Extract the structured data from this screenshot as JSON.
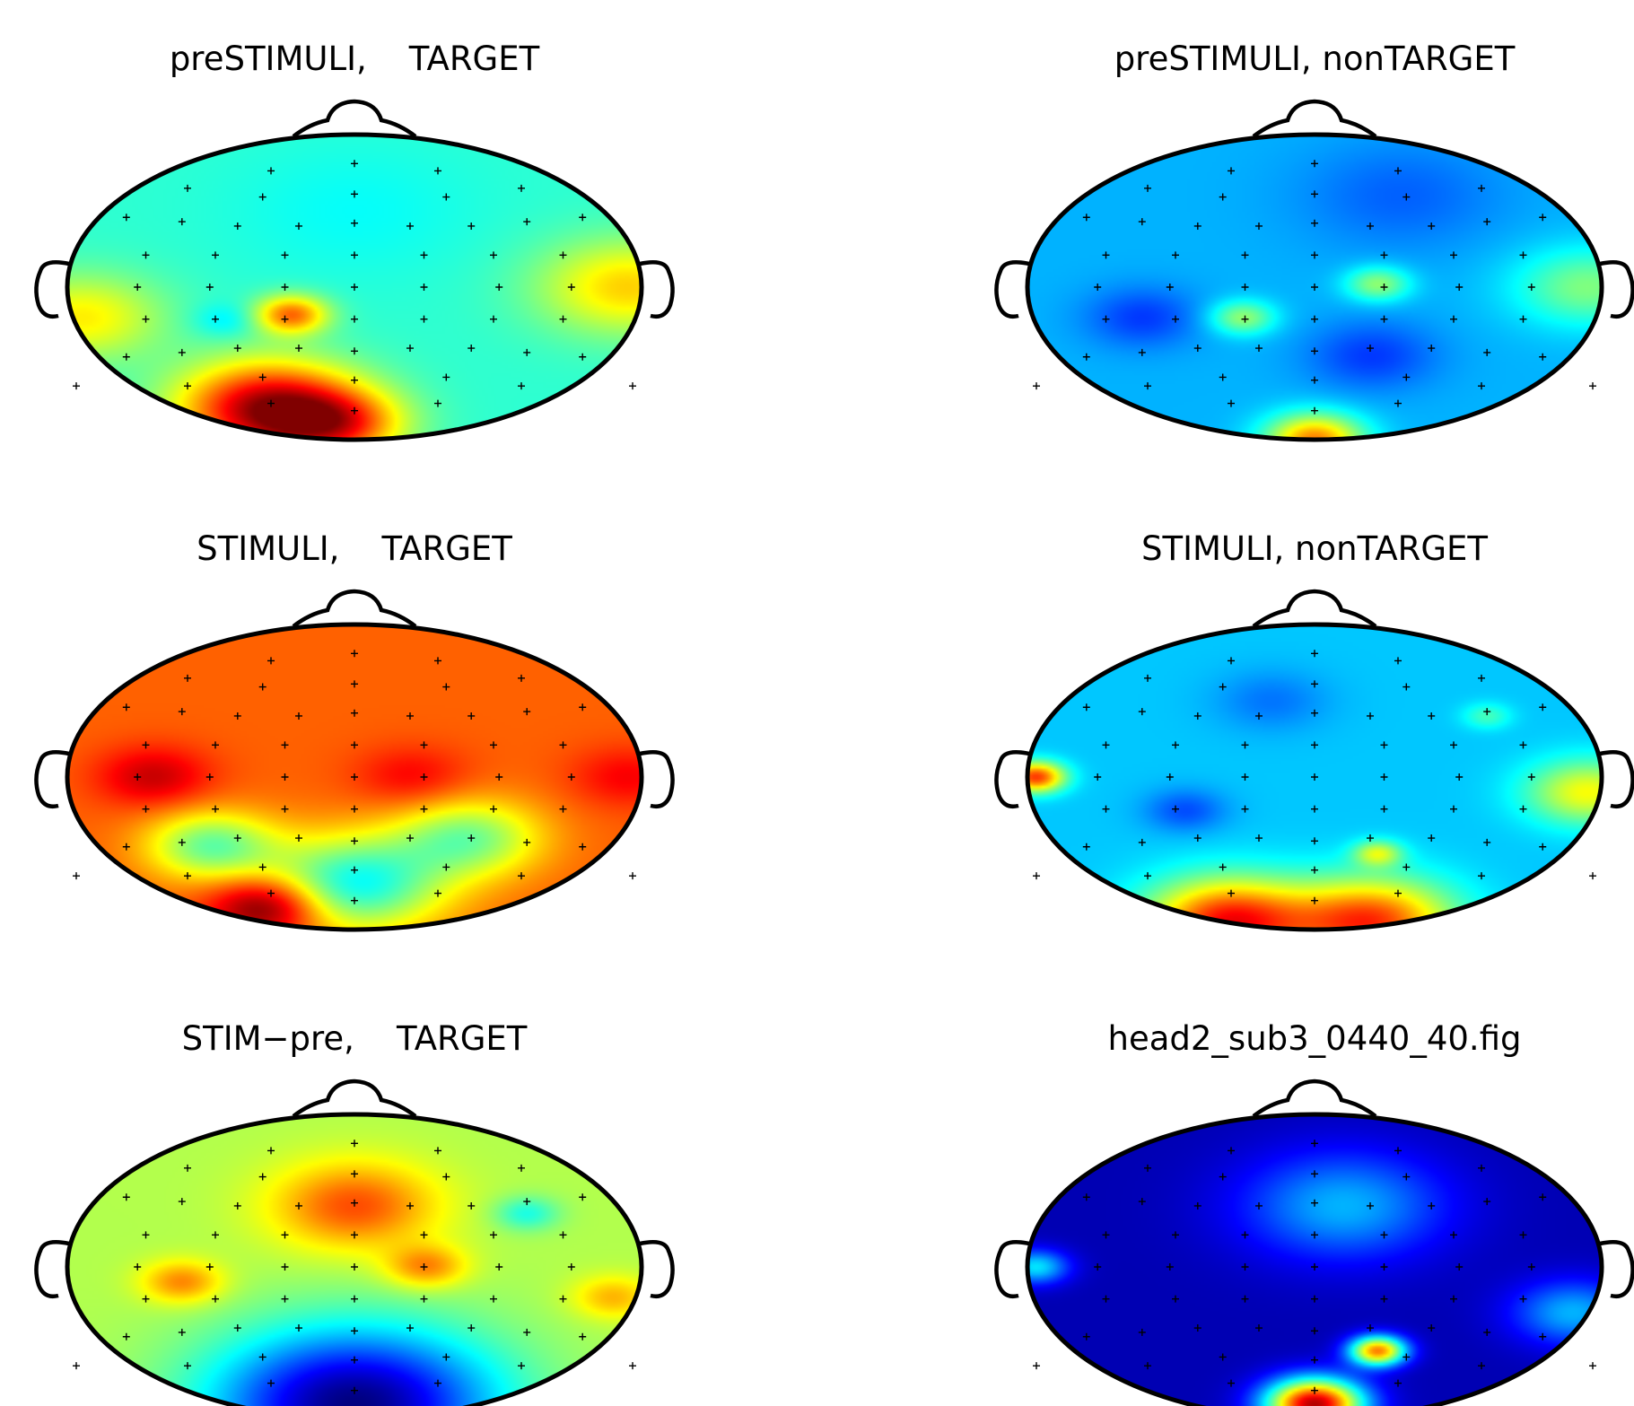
{
  "figure": {
    "panels": [
      {
        "title": "preSTIMULI,    TARGET"
      },
      {
        "title": "preSTIMULI, nonTARGET"
      },
      {
        "title": "STIMULI,    TARGET"
      },
      {
        "title": "STIMULI, nonTARGET"
      },
      {
        "title": "STIM−pre,    TARGET"
      },
      {
        "title": "head2_sub3_0440_40.fig"
      }
    ]
  },
  "chart_data": {
    "type": "heatmap",
    "colormap": "jet",
    "panels": [
      {
        "title": "preSTIMULI,    TARGET",
        "background": 0.42,
        "blobs": [
          {
            "u": -0.3,
            "v": 0.8,
            "amp": 0.55,
            "s": 0.22
          },
          {
            "u": -0.05,
            "v": 0.9,
            "amp": 0.3,
            "s": 0.16
          },
          {
            "u": -0.22,
            "v": 0.18,
            "amp": 0.35,
            "s": 0.09
          },
          {
            "u": -0.45,
            "v": 0.22,
            "amp": -0.08,
            "s": 0.08
          },
          {
            "u": 0.95,
            "v": 0.0,
            "amp": 0.25,
            "s": 0.22
          },
          {
            "u": -0.95,
            "v": 0.2,
            "amp": 0.22,
            "s": 0.2
          },
          {
            "u": 0.0,
            "v": -0.5,
            "amp": -0.04,
            "s": 0.3
          }
        ]
      },
      {
        "title": "preSTIMULI, nonTARGET",
        "background": 0.3,
        "blobs": [
          {
            "u": -0.6,
            "v": 0.2,
            "amp": -0.12,
            "s": 0.14
          },
          {
            "u": 0.2,
            "v": 0.45,
            "amp": -0.12,
            "s": 0.16
          },
          {
            "u": -0.25,
            "v": 0.2,
            "amp": 0.22,
            "s": 0.08
          },
          {
            "u": 0.22,
            "v": -0.02,
            "amp": 0.22,
            "s": 0.08
          },
          {
            "u": 0.0,
            "v": 1.0,
            "amp": 0.45,
            "s": 0.12
          },
          {
            "u": 0.95,
            "v": 0.0,
            "amp": 0.2,
            "s": 0.18
          },
          {
            "u": 0.3,
            "v": -0.6,
            "amp": -0.08,
            "s": 0.25
          }
        ]
      },
      {
        "title": "STIMULI,    TARGET",
        "background": 0.78,
        "blobs": [
          {
            "u": -0.7,
            "v": 0.0,
            "amp": 0.15,
            "s": 0.14
          },
          {
            "u": 0.2,
            "v": 0.0,
            "amp": 0.1,
            "s": 0.14
          },
          {
            "u": 0.0,
            "v": 0.7,
            "amp": -0.4,
            "s": 0.22
          },
          {
            "u": -0.5,
            "v": 0.45,
            "amp": -0.3,
            "s": 0.16
          },
          {
            "u": 0.4,
            "v": 0.4,
            "amp": -0.28,
            "s": 0.18
          },
          {
            "u": 0.95,
            "v": 0.0,
            "amp": 0.1,
            "s": 0.14
          },
          {
            "u": -0.3,
            "v": 0.85,
            "amp": 0.3,
            "s": 0.14
          }
        ]
      },
      {
        "title": "STIMULI, nonTARGET",
        "background": 0.32,
        "blobs": [
          {
            "u": -0.45,
            "v": 0.22,
            "amp": -0.12,
            "s": 0.1
          },
          {
            "u": -0.15,
            "v": -0.5,
            "amp": -0.08,
            "s": 0.14
          },
          {
            "u": -0.3,
            "v": 0.95,
            "amp": 0.55,
            "s": 0.2
          },
          {
            "u": 0.2,
            "v": 0.95,
            "amp": 0.5,
            "s": 0.2
          },
          {
            "u": -0.97,
            "v": 0.0,
            "amp": 0.5,
            "s": 0.07
          },
          {
            "u": 0.95,
            "v": 0.1,
            "amp": 0.3,
            "s": 0.15
          },
          {
            "u": 0.22,
            "v": 0.5,
            "amp": 0.25,
            "s": 0.06
          },
          {
            "u": 0.6,
            "v": -0.4,
            "amp": 0.12,
            "s": 0.06
          }
        ]
      },
      {
        "title": "STIM−pre,    TARGET",
        "background": 0.55,
        "blobs": [
          {
            "u": 0.0,
            "v": 0.9,
            "amp": -0.55,
            "s": 0.35
          },
          {
            "u": 0.0,
            "v": -0.4,
            "amp": 0.25,
            "s": 0.2
          },
          {
            "u": 0.25,
            "v": 0.0,
            "amp": 0.2,
            "s": 0.1
          },
          {
            "u": -0.6,
            "v": 0.1,
            "amp": 0.2,
            "s": 0.1
          },
          {
            "u": 0.6,
            "v": -0.35,
            "amp": -0.15,
            "s": 0.08
          },
          {
            "u": 0.9,
            "v": 0.2,
            "amp": 0.15,
            "s": 0.1
          }
        ]
      },
      {
        "title": "head2_sub3_0440_40.fig",
        "background": 0.05,
        "blobs": [
          {
            "u": 0.0,
            "v": 0.9,
            "amp": 0.9,
            "s": 0.12
          },
          {
            "u": 0.22,
            "v": 0.55,
            "amp": 0.7,
            "s": 0.07
          },
          {
            "u": 0.1,
            "v": -0.4,
            "amp": 0.25,
            "s": 0.25
          },
          {
            "u": -0.97,
            "v": 0.0,
            "amp": 0.3,
            "s": 0.08
          },
          {
            "u": 0.9,
            "v": 0.3,
            "amp": 0.25,
            "s": 0.15
          }
        ]
      }
    ],
    "electrodes": [
      [
        -0.3,
        -0.8
      ],
      [
        0.0,
        -0.85
      ],
      [
        0.3,
        -0.8
      ],
      [
        -0.6,
        -0.68
      ],
      [
        -0.33,
        -0.62
      ],
      [
        0.0,
        -0.64
      ],
      [
        0.33,
        -0.62
      ],
      [
        0.6,
        -0.68
      ],
      [
        -0.82,
        -0.48
      ],
      [
        -0.62,
        -0.45
      ],
      [
        -0.42,
        -0.42
      ],
      [
        -0.2,
        -0.42
      ],
      [
        0.0,
        -0.44
      ],
      [
        0.2,
        -0.42
      ],
      [
        0.42,
        -0.42
      ],
      [
        0.62,
        -0.45
      ],
      [
        0.82,
        -0.48
      ],
      [
        -0.75,
        -0.22
      ],
      [
        -0.5,
        -0.22
      ],
      [
        -0.25,
        -0.22
      ],
      [
        0.0,
        -0.22
      ],
      [
        0.25,
        -0.22
      ],
      [
        0.5,
        -0.22
      ],
      [
        0.75,
        -0.22
      ],
      [
        -0.78,
        0.0
      ],
      [
        -0.52,
        0.0
      ],
      [
        -0.25,
        0.0
      ],
      [
        0.0,
        0.0
      ],
      [
        0.25,
        0.0
      ],
      [
        0.52,
        0.0
      ],
      [
        0.78,
        0.0
      ],
      [
        -0.75,
        0.22
      ],
      [
        -0.5,
        0.22
      ],
      [
        -0.25,
        0.22
      ],
      [
        0.0,
        0.22
      ],
      [
        0.25,
        0.22
      ],
      [
        0.5,
        0.22
      ],
      [
        0.75,
        0.22
      ],
      [
        -0.82,
        0.48
      ],
      [
        -0.62,
        0.45
      ],
      [
        -0.42,
        0.42
      ],
      [
        -0.2,
        0.42
      ],
      [
        0.0,
        0.44
      ],
      [
        0.2,
        0.42
      ],
      [
        0.42,
        0.42
      ],
      [
        0.62,
        0.45
      ],
      [
        0.82,
        0.48
      ],
      [
        -0.6,
        0.68
      ],
      [
        -0.33,
        0.62
      ],
      [
        0.0,
        0.64
      ],
      [
        0.33,
        0.62
      ],
      [
        0.6,
        0.68
      ],
      [
        -0.3,
        0.8
      ],
      [
        0.0,
        0.85
      ],
      [
        0.3,
        0.8
      ],
      [
        -1.0,
        0.68
      ],
      [
        1.0,
        0.68
      ]
    ]
  }
}
